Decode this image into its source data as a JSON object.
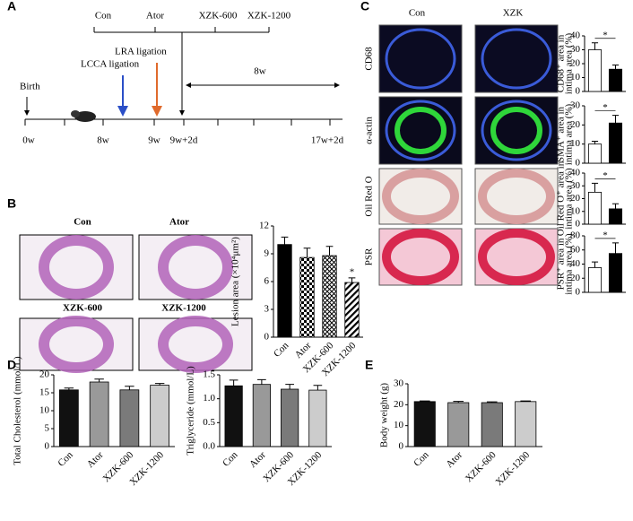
{
  "panel_labels": [
    "A",
    "B",
    "C",
    "D",
    "E"
  ],
  "timeline": {
    "groups": [
      "Con",
      "Ator",
      "XZK-600",
      "XZK-1200"
    ],
    "birth": "Birth",
    "lcca": "LCCA ligation",
    "lra": "LRA ligation",
    "duration": "8w",
    "times": [
      "0w",
      "8w",
      "9w",
      "9w+2d",
      "17w+2d"
    ]
  },
  "panel_b": {
    "images": [
      "Con",
      "Ator",
      "XZK-600",
      "XZK-1200"
    ]
  },
  "panel_c": {
    "columns": [
      "Con",
      "XZK"
    ],
    "rows": [
      "CD68",
      "α-actin",
      "Oil Red O",
      "PSR"
    ]
  },
  "chart_data": [
    {
      "type": "bar",
      "ylabel": [
        "Lesion area (×10⁴μm²)"
      ],
      "categories": [
        "Con",
        "Ator",
        "XZK-600",
        "XZK-1200"
      ],
      "values": [
        10,
        8.6,
        8.8,
        5.9
      ],
      "errors": [
        0.8,
        1.0,
        1.0,
        0.5
      ],
      "patterns": [
        "solid",
        "checker",
        "crosshatch",
        "diagonal"
      ],
      "colors": [
        "#000000",
        "#000000",
        "#000000",
        "#000000"
      ],
      "ylim": [
        0,
        12
      ],
      "yticks": [
        0,
        3,
        6,
        9,
        12
      ],
      "annotations": [
        {
          "text": "*",
          "category": "XZK-1200"
        }
      ]
    },
    {
      "type": "bar",
      "ylabel": [
        "CD68⁺ area in",
        "intima area (%)"
      ],
      "values": [
        30,
        16
      ],
      "errors": [
        5,
        3
      ],
      "colors": [
        "#ffffff",
        "#000000"
      ],
      "ylim": [
        0,
        40
      ],
      "yticks": [
        0,
        10,
        20,
        30,
        40
      ],
      "bracket": "*"
    },
    {
      "type": "bar",
      "ylabel": [
        "SMA⁺ area in",
        "intima area (%)"
      ],
      "values": [
        10,
        21
      ],
      "errors": [
        1.5,
        4
      ],
      "colors": [
        "#ffffff",
        "#000000"
      ],
      "ylim": [
        0,
        30
      ],
      "yticks": [
        0,
        10,
        20,
        30
      ],
      "bracket": "*"
    },
    {
      "type": "bar",
      "ylabel": [
        "Oil Red O⁺ area in",
        "intima area (%)"
      ],
      "values": [
        25,
        12
      ],
      "errors": [
        7,
        4
      ],
      "colors": [
        "#ffffff",
        "#000000"
      ],
      "ylim": [
        0,
        40
      ],
      "yticks": [
        0,
        10,
        20,
        30,
        40
      ],
      "bracket": "*"
    },
    {
      "type": "bar",
      "ylabel": [
        "PSR⁺ area in",
        "intima area (%)"
      ],
      "values": [
        35,
        55
      ],
      "errors": [
        8,
        15
      ],
      "colors": [
        "#ffffff",
        "#000000"
      ],
      "ylim": [
        0,
        80
      ],
      "yticks": [
        0,
        20,
        40,
        60,
        80
      ],
      "bracket": "*"
    },
    {
      "type": "bar",
      "ylabel": [
        "Total Cholesterol (mmol/L)"
      ],
      "categories": [
        "Con",
        "Ator",
        "XZK-600",
        "XZK-1200"
      ],
      "values": [
        15.8,
        18,
        15.8,
        17.1
      ],
      "errors": [
        0.5,
        0.8,
        1.0,
        0.5
      ],
      "colors": [
        "#111111",
        "#999999",
        "#7a7a7a",
        "#cccccc"
      ],
      "ylim": [
        0,
        20
      ],
      "yticks": [
        0,
        5,
        10,
        15,
        20
      ]
    },
    {
      "type": "bar",
      "ylabel": [
        "Triglyceride (mmol/L)"
      ],
      "categories": [
        "Con",
        "Ator",
        "XZK-600",
        "XZK-1200"
      ],
      "values": [
        1.27,
        1.3,
        1.2,
        1.18
      ],
      "errors": [
        0.12,
        0.1,
        0.1,
        0.1
      ],
      "colors": [
        "#111111",
        "#999999",
        "#7a7a7a",
        "#cccccc"
      ],
      "ylim": [
        0,
        1.5
      ],
      "yticks": [
        {
          "value": 0,
          "label": "0.0"
        },
        {
          "value": 0.5,
          "label": "0.5"
        },
        {
          "value": 1,
          "label": "1.0"
        },
        {
          "value": 1.5,
          "label": "1.5"
        }
      ]
    },
    {
      "type": "bar",
      "ylabel": [
        "Body weight (g)"
      ],
      "categories": [
        "Con",
        "Ator",
        "XZK-600",
        "XZK-1200"
      ],
      "values": [
        21.5,
        21,
        21,
        21.5
      ],
      "errors": [
        0.3,
        0.6,
        0.4,
        0.3
      ],
      "colors": [
        "#111111",
        "#999999",
        "#7a7a7a",
        "#cccccc"
      ],
      "ylim": [
        0,
        30
      ],
      "yticks": [
        0,
        10,
        20,
        30
      ]
    }
  ]
}
